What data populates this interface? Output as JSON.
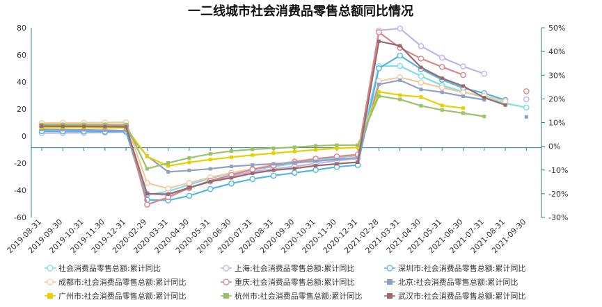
{
  "chart_data": {
    "type": "line",
    "title": "一二线城市社会消费品零售总额同比情况",
    "categories": [
      "2019-08-31",
      "2019-09-30",
      "2019-10-31",
      "2019-11-30",
      "2019-12-31",
      "2020-02-29",
      "2020-03-31",
      "2020-04-30",
      "2020-05-31",
      "2020-06-30",
      "2020-07-31",
      "2020-08-31",
      "2020-09-30",
      "2020-10-31",
      "2020-11-30",
      "2020-12-31",
      "2021-02-28",
      "2021-03-31",
      "2021-04-30",
      "2021-05-31",
      "2021-06-30",
      "2021-07-31",
      "2021-08-31",
      "2021-09-30"
    ],
    "y_left": {
      "ylim": [
        -60,
        80
      ],
      "ticks": [
        "80",
        "60",
        "40",
        "20",
        "0",
        "-20",
        "-40",
        "-60"
      ]
    },
    "y_right": {
      "ylim": [
        -30,
        50
      ],
      "ticks": [
        "50%",
        "40%",
        "30%",
        "20%",
        "10%",
        "0%",
        "-10%",
        "-20%",
        "-30%"
      ]
    },
    "legend_position": "bottom",
    "series": [
      {
        "name": "社会消费品零售总额:累计同比",
        "color": "#7bdcf0",
        "axis": "right",
        "marker": "circle",
        "values": [
          8.2,
          8.2,
          8.1,
          8.0,
          8.0,
          -20.5,
          -19.0,
          -16.2,
          -13.5,
          -11.4,
          -9.9,
          -8.6,
          -7.2,
          -5.9,
          -4.8,
          -3.9,
          33.8,
          33.9,
          29.6,
          25.7,
          23.0,
          20.7,
          18.1,
          16.4
        ]
      },
      {
        "name": "上海:社会消费品零售总额:累计同比",
        "color": "#c0b3e8",
        "axis": "right",
        "marker": "circle",
        "values": [
          5.6,
          5.6,
          5.7,
          5.8,
          6.0,
          -20.0,
          -20.6,
          -17.3,
          -14.9,
          -12.6,
          -10.7,
          -9.6,
          -8.5,
          -7.3,
          -6.1,
          -5.1,
          48.9,
          49.7,
          42.3,
          37.4,
          33.7,
          30.6,
          null,
          19.8
        ]
      },
      {
        "name": "深圳市:社会消费品零售总额:累计同比",
        "color": "#52b6e0",
        "axis": "right",
        "marker": "circle",
        "values": [
          6.4,
          6.3,
          6.3,
          6.2,
          6.3,
          -22.6,
          -22.8,
          -20.9,
          -18.0,
          -15.7,
          -13.8,
          -12.4,
          -11.2,
          -10.0,
          -8.7,
          -7.9,
          32.9,
          38.3,
          32.6,
          28.1,
          24.6,
          22.4,
          19.5,
          null
        ]
      },
      {
        "name": "成都市:社会消费品零售总额:累计同比",
        "color": "#f5c7a0",
        "axis": "right",
        "marker": "circle",
        "values": [
          9.8,
          9.9,
          9.9,
          10.0,
          10.1,
          -15.5,
          -17.8,
          -15.4,
          -13.1,
          -11.2,
          -9.5,
          -7.8,
          -6.3,
          -5.2,
          -4.3,
          -3.7,
          27.5,
          29.1,
          26.9,
          24.8,
          22.7,
          21.4,
          19.0,
          null
        ]
      },
      {
        "name": "重庆:社会消费品零售总额:累计同比",
        "color": "#d9858b",
        "axis": "right",
        "marker": "circle",
        "values": [
          8.7,
          8.8,
          8.8,
          8.8,
          8.7,
          -24.6,
          -21.5,
          -17.6,
          -14.5,
          -12.1,
          -9.8,
          -8.1,
          -6.6,
          -5.3,
          -4.3,
          -3.5,
          48.1,
          41.6,
          37.0,
          33.5,
          30.1,
          null,
          null,
          23.2
        ]
      },
      {
        "name": "北京:社会消费品零售总额:累计同比",
        "color": "#8fa0c4",
        "axis": "right",
        "marker": "square",
        "values": [
          7.1,
          7.0,
          6.9,
          6.8,
          6.6,
          -4.1,
          -10.8,
          -10.2,
          -9.5,
          -8.5,
          -7.9,
          -7.4,
          -6.9,
          -6.3,
          -5.5,
          -4.8,
          26.1,
          27.9,
          24.0,
          22.8,
          21.1,
          19.6,
          null,
          12.4
        ]
      },
      {
        "name": "广州市:社会消费品零售总额:累计同比",
        "color": "#e6d000",
        "axis": "right",
        "marker": "square",
        "values": [
          7.9,
          7.9,
          7.9,
          7.8,
          7.8,
          -4.3,
          -8.3,
          -6.8,
          -5.6,
          -4.6,
          -3.7,
          -2.9,
          -2.2,
          -1.5,
          -0.8,
          -0.5,
          23.0,
          21.6,
          20.8,
          17.2,
          16.1,
          null,
          null,
          null
        ]
      },
      {
        "name": "杭州市:社会消费品零售总额:累计同比",
        "color": "#9bc16b",
        "axis": "right",
        "marker": "square",
        "values": [
          9.2,
          9.2,
          9.2,
          9.2,
          9.2,
          -9.5,
          -7.0,
          -4.9,
          -3.2,
          -2.0,
          -1.3,
          -0.8,
          -0.4,
          0.2,
          0.5,
          0.5,
          21.2,
          19.8,
          17.1,
          15.3,
          14.0,
          12.6,
          null,
          null
        ]
      },
      {
        "name": "武汉市:社会消费品零售总额:累计同比",
        "color": "#9a6a6a",
        "axis": "right",
        "marker": "square",
        "values": [
          8.5,
          8.4,
          8.4,
          8.3,
          8.2,
          -20.0,
          -20.2,
          -17.5,
          -14.9,
          -13.3,
          -11.4,
          -10.1,
          -9.3,
          -8.2,
          -7.4,
          -6.7,
          44.3,
          42.4,
          33.3,
          28.7,
          25.4,
          20.5,
          17.4,
          null
        ]
      }
    ]
  }
}
